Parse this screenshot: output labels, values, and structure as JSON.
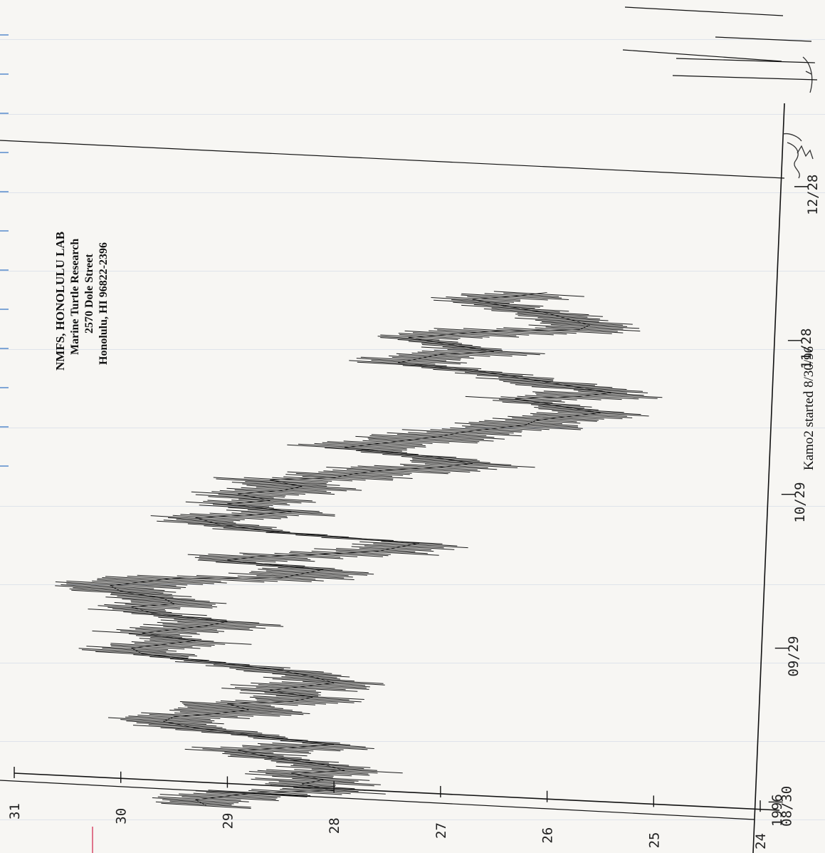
{
  "chart_data": {
    "type": "line",
    "orientation": "rotated-90-ccw",
    "title": "",
    "xlabel": "",
    "ylabel": "",
    "x_tick_labels": [
      "08/30",
      "09/29",
      "10/29",
      "11/28",
      "12/28"
    ],
    "x_year_label": "1996",
    "y_ticks": [
      24,
      25,
      26,
      27,
      28,
      29,
      30,
      31
    ],
    "ylim": [
      24,
      31
    ],
    "xlim": [
      0,
      122
    ],
    "grid": false,
    "series": [
      {
        "style": "dense-horizontal-trace",
        "points": [
          [
            0,
            29.2
          ],
          [
            1,
            29.3
          ],
          [
            2,
            29.0
          ],
          [
            3,
            28.7
          ],
          [
            4,
            28.0
          ],
          [
            5,
            28.3
          ],
          [
            6,
            28.1
          ],
          [
            7,
            28.4
          ],
          [
            8,
            27.9
          ],
          [
            9,
            28.1
          ],
          [
            10,
            28.6
          ],
          [
            11,
            28.9
          ],
          [
            12,
            28.4
          ],
          [
            13,
            28.0
          ],
          [
            14,
            28.7
          ],
          [
            15,
            29.3
          ],
          [
            16,
            29.6
          ],
          [
            17,
            29.5
          ],
          [
            18,
            29.1
          ],
          [
            19,
            28.8
          ],
          [
            20,
            29.0
          ],
          [
            21,
            28.4
          ],
          [
            22,
            28.2
          ],
          [
            23,
            28.6
          ],
          [
            24,
            28.3
          ],
          [
            25,
            28.0
          ],
          [
            26,
            28.2
          ],
          [
            27,
            28.5
          ],
          [
            28,
            29.1
          ],
          [
            29,
            29.8
          ],
          [
            30,
            29.9
          ],
          [
            31,
            29.6
          ],
          [
            32,
            29.3
          ],
          [
            33,
            29.8
          ],
          [
            34,
            29.5
          ],
          [
            35,
            29.2
          ],
          [
            36,
            29.0
          ],
          [
            37,
            29.7
          ],
          [
            38,
            29.9
          ],
          [
            39,
            29.5
          ],
          [
            40,
            29.6
          ],
          [
            41,
            30.0
          ],
          [
            42,
            30.1
          ],
          [
            43,
            29.8
          ],
          [
            44,
            29.5
          ],
          [
            45,
            28.5
          ],
          [
            46,
            28.3
          ],
          [
            47,
            28.1
          ],
          [
            48,
            29.0
          ],
          [
            49,
            28.7
          ],
          [
            50,
            28.1
          ],
          [
            51,
            27.6
          ],
          [
            52,
            27.4
          ],
          [
            53,
            27.2
          ],
          [
            54,
            28.6
          ],
          [
            55,
            29.1
          ],
          [
            56,
            29.3
          ],
          [
            57,
            28.8
          ],
          [
            58,
            28.4
          ],
          [
            59,
            29.0
          ],
          [
            60,
            28.6
          ],
          [
            61,
            28.9
          ],
          [
            62,
            28.5
          ],
          [
            63,
            28.3
          ],
          [
            64,
            28.6
          ],
          [
            65,
            28.0
          ],
          [
            66,
            27.8
          ],
          [
            67,
            27.5
          ],
          [
            68,
            27.0
          ],
          [
            69,
            26.7
          ],
          [
            70,
            27.1
          ],
          [
            71,
            27.9
          ],
          [
            72,
            27.6
          ],
          [
            73,
            27.3
          ],
          [
            74,
            27.0
          ],
          [
            75,
            26.8
          ],
          [
            76,
            26.5
          ],
          [
            77,
            26.2
          ],
          [
            78,
            26.1
          ],
          [
            79,
            25.8
          ],
          [
            80,
            25.5
          ],
          [
            81,
            25.9
          ],
          [
            82,
            26.3
          ],
          [
            83,
            25.7
          ],
          [
            84,
            25.4
          ],
          [
            85,
            25.8
          ],
          [
            86,
            26.2
          ],
          [
            87,
            26.6
          ],
          [
            88,
            27.4
          ],
          [
            89,
            27.2
          ],
          [
            90,
            27.0
          ],
          [
            91,
            26.5
          ],
          [
            92,
            26.9
          ],
          [
            93,
            27.3
          ],
          [
            94,
            26.9
          ],
          [
            95,
            26.5
          ],
          [
            96,
            25.7
          ],
          [
            97,
            25.6
          ],
          [
            98,
            25.8
          ],
          [
            99,
            26.0
          ],
          [
            100,
            26.4
          ],
          [
            101,
            26.7
          ],
          [
            102,
            26.3
          ],
          [
            103,
            26.0
          ]
        ]
      }
    ],
    "annotations": {
      "lab_block": [
        "NMFS, HONOLULU LAB",
        "Marine Turtle Research",
        "2570 Dole Street",
        "Honolulu, HI  96822-2396"
      ],
      "footer_note": "Kamo2  started  8/30/96"
    }
  }
}
